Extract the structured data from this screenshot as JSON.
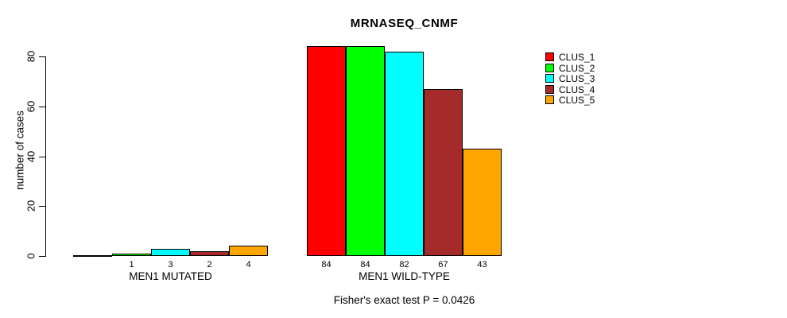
{
  "chart_data": {
    "type": "bar",
    "title": "MRNASEQ_CNMF",
    "subtitle": "Fisher's exact test P = 0.0426",
    "ylabel": "number of cases",
    "xlabel": "",
    "ylim": [
      0,
      80
    ],
    "yticks": [
      0,
      20,
      40,
      60,
      80
    ],
    "grid": false,
    "legend_position": "right",
    "categories": [
      "MEN1 MUTATED",
      "MEN1 WILD-TYPE"
    ],
    "series": [
      {
        "name": "CLUS_1",
        "color": "#FF0000",
        "values": [
          0,
          84
        ]
      },
      {
        "name": "CLUS_2",
        "color": "#00FF00",
        "values": [
          1,
          84
        ]
      },
      {
        "name": "CLUS_3",
        "color": "#00FFFF",
        "values": [
          3,
          82
        ]
      },
      {
        "name": "CLUS_4",
        "color": "#A52A2A",
        "values": [
          2,
          67
        ]
      },
      {
        "name": "CLUS_5",
        "color": "#FFA500",
        "values": [
          4,
          43
        ]
      }
    ],
    "bar_labels": [
      [
        "",
        "1",
        "3",
        "2",
        "4"
      ],
      [
        "84",
        "84",
        "82",
        "67",
        "43"
      ]
    ],
    "axis_color": "#000000",
    "bar_border_color": "#000000"
  }
}
